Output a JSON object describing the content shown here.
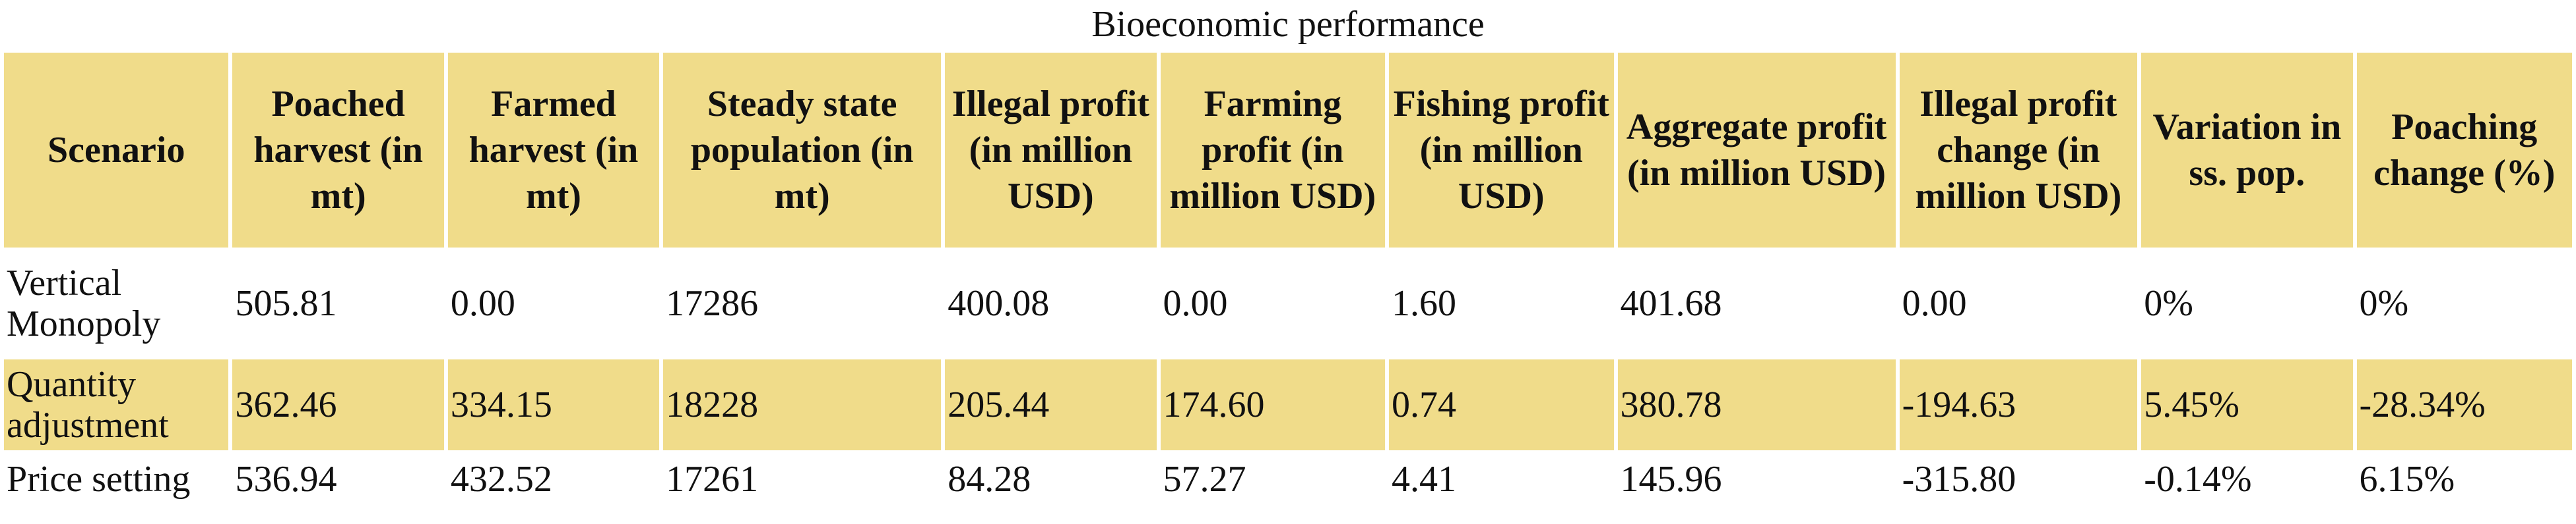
{
  "caption": "Bioeconomic performance",
  "columns": [
    "Scenario",
    "Poached harvest (in mt)",
    "Farmed harvest (in mt)",
    "Steady state population (in mt)",
    "Illegal profit (in million USD)",
    "Farming profit (in million USD)",
    "Fishing profit (in million USD)",
    "Aggregate profit (in million USD)",
    "Illegal profit change (in million USD)",
    "Variation in ss. pop.",
    "Poaching change (%)"
  ],
  "rows": [
    [
      "Vertical Monopoly",
      "505.81",
      "0.00",
      "17286",
      "400.08",
      "0.00",
      "1.60",
      "401.68",
      "0.00",
      "0%",
      "0%"
    ],
    [
      "Quantity adjustment",
      "362.46",
      "334.15",
      "18228",
      "205.44",
      "174.60",
      "0.74",
      "380.78",
      "-194.63",
      "5.45%",
      "-28.34%"
    ],
    [
      "Price setting",
      "536.94",
      "432.52",
      "17261",
      "84.28",
      "57.27",
      "4.41",
      "145.96",
      "-315.80",
      "-0.14%",
      "6.15%"
    ]
  ],
  "colors": {
    "header_fill": "#f0dc8a",
    "shaded_row_fill": "#f0dc8a",
    "plain_row_fill": "#ffffff"
  }
}
